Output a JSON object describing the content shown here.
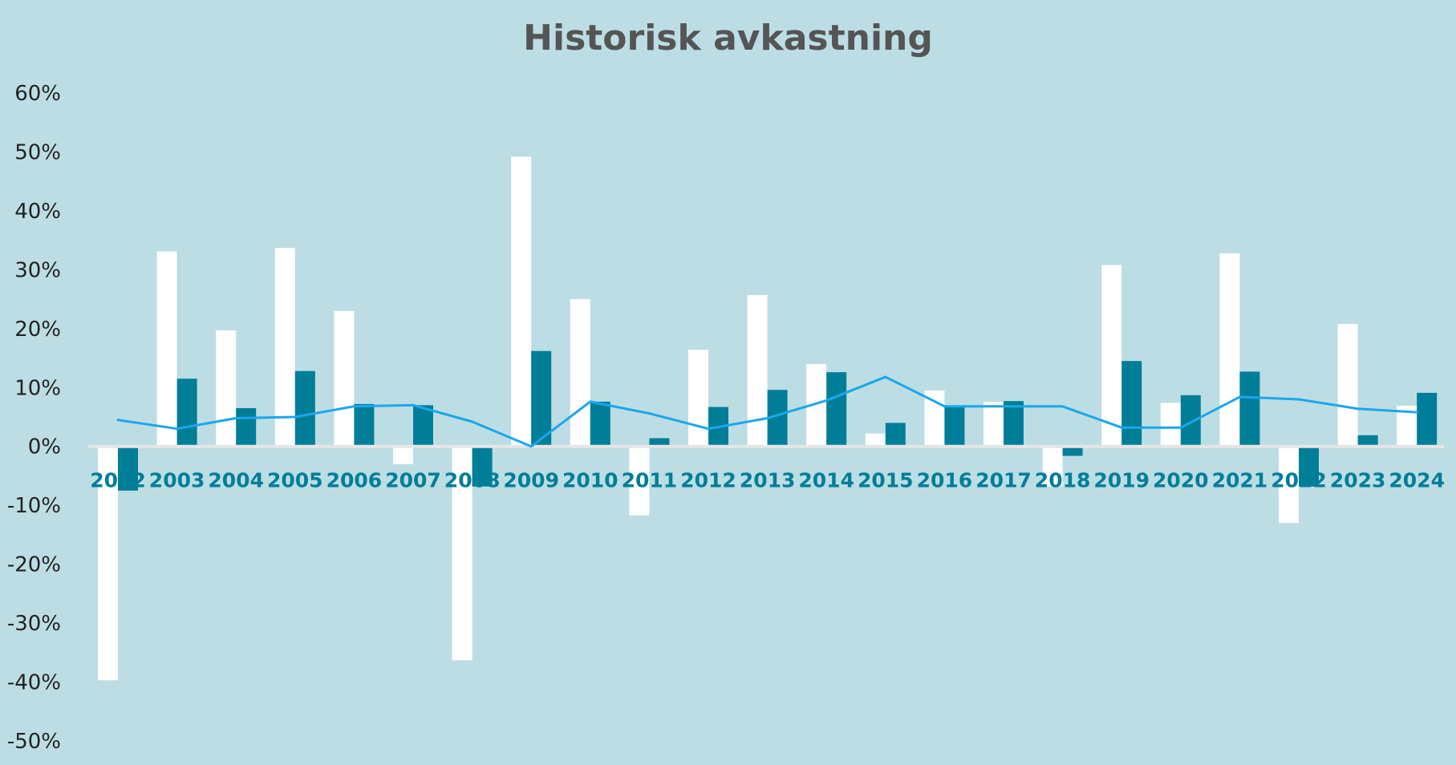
{
  "chart_data": {
    "type": "bar",
    "title": "Historisk avkastning",
    "xlabel": "",
    "ylabel": "",
    "ylim": [
      -50,
      60
    ],
    "yticks": [
      60,
      50,
      40,
      30,
      20,
      10,
      0,
      -10,
      -20,
      -30,
      -40,
      -50
    ],
    "ytick_format": "{v}%",
    "grid": false,
    "legend": "none",
    "categories": [
      "2002",
      "2003",
      "2004",
      "2005",
      "2006",
      "2007",
      "2008",
      "2009",
      "2010",
      "2011",
      "2012",
      "2013",
      "2014",
      "2015",
      "2016",
      "2017",
      "2018",
      "2019",
      "2020",
      "2021",
      "2022",
      "2023",
      "2024"
    ],
    "series": [
      {
        "type": "bar",
        "color": "#ffffff",
        "values": [
          -39.7,
          33.1,
          19.7,
          33.7,
          23.0,
          -3.0,
          -36.3,
          49.2,
          25.0,
          -11.7,
          16.4,
          25.7,
          14.0,
          2.2,
          9.5,
          7.6,
          -6.8,
          30.8,
          7.4,
          32.8,
          -13.0,
          20.8,
          6.9
        ]
      },
      {
        "type": "bar",
        "color": "#007e98",
        "values": [
          -7.5,
          11.5,
          6.5,
          12.8,
          7.2,
          7.0,
          -6.8,
          16.2,
          7.6,
          1.4,
          6.7,
          9.6,
          12.6,
          4.0,
          6.8,
          7.7,
          -1.6,
          14.5,
          8.7,
          12.7,
          -6.8,
          1.9,
          9.1
        ]
      },
      {
        "type": "line",
        "color": "#1aa7ee",
        "values": [
          4.5,
          3.0,
          4.8,
          5.0,
          6.8,
          7.0,
          4.2,
          0.0,
          7.6,
          5.6,
          3.0,
          4.8,
          7.8,
          11.8,
          6.8,
          6.8,
          6.8,
          3.2,
          3.2,
          8.4,
          8.0,
          6.4,
          5.8
        ]
      }
    ]
  }
}
